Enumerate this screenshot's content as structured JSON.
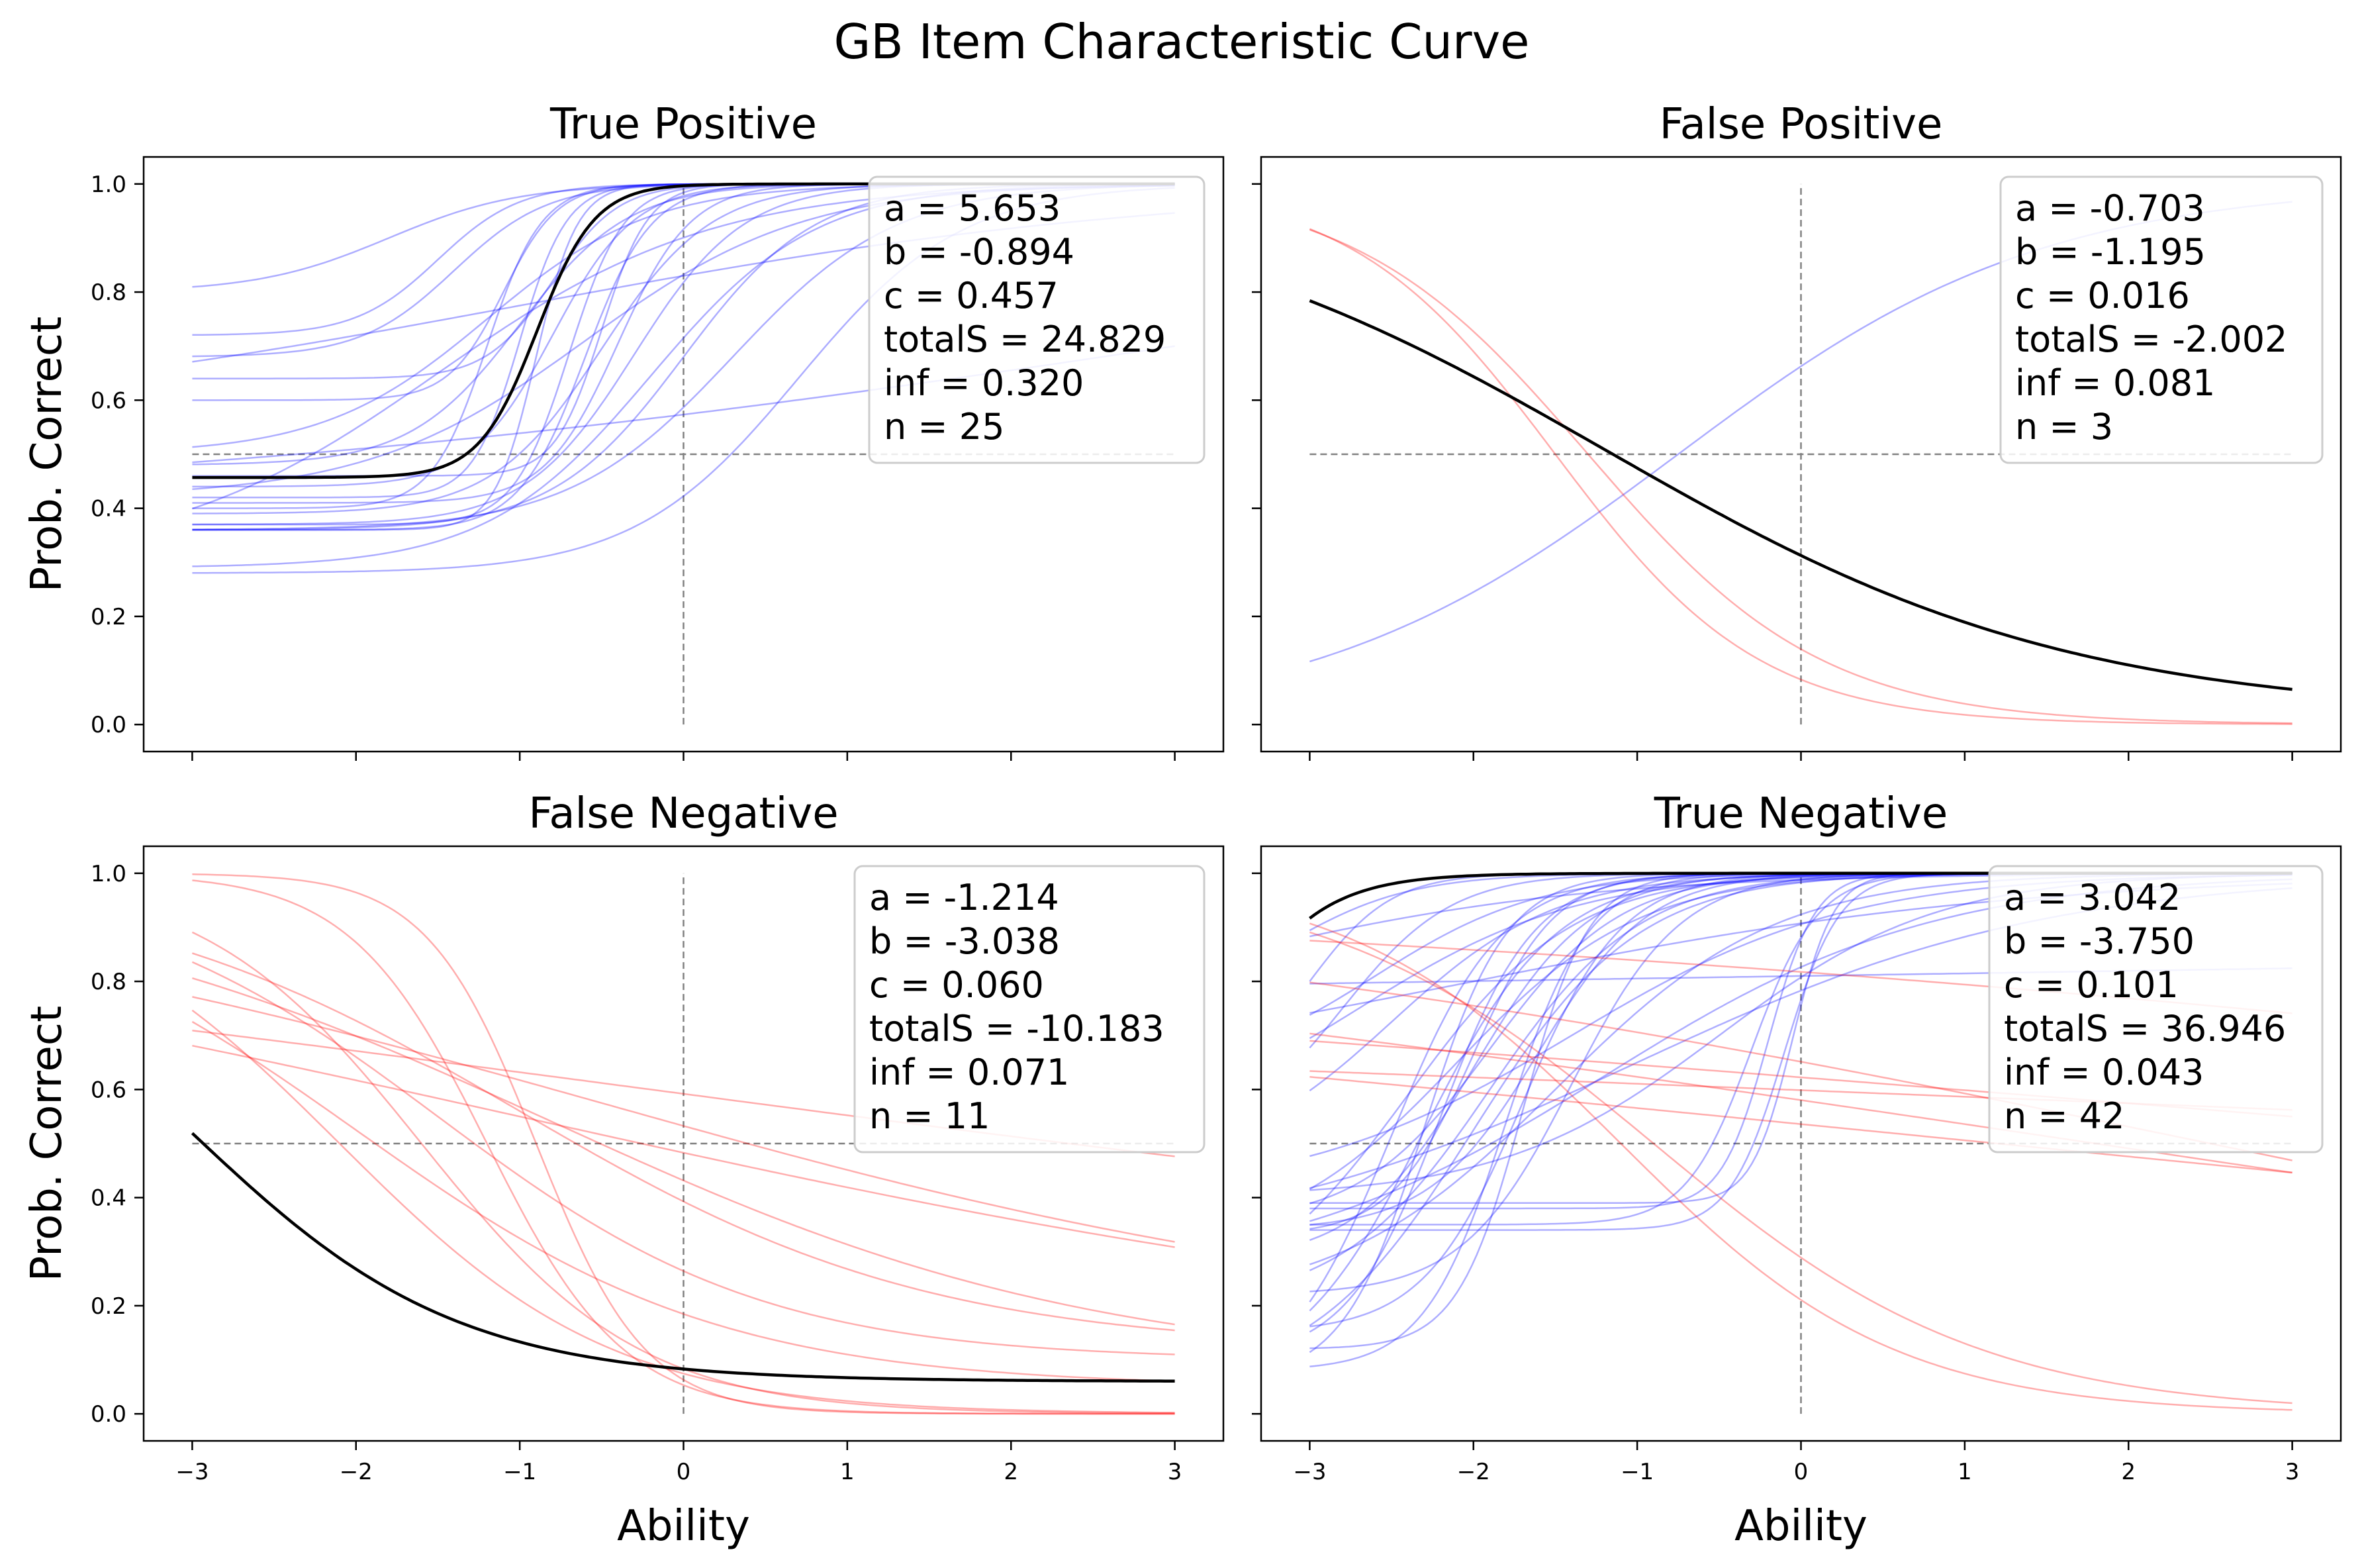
{
  "figure": {
    "title": "GB Item Characteristic Curve"
  },
  "colors": {
    "positive": "#0000ff",
    "negative": "#ff0000",
    "mean": "#000000",
    "guide": "#808080"
  },
  "chart_data": [
    {
      "type": "line",
      "title": "True Positive",
      "xlabel": "",
      "ylabel": "Prob. Correct",
      "xlim": [
        -3,
        3
      ],
      "ylim": [
        -0.05,
        1.05
      ],
      "xticks": [
        "−3",
        "−2",
        "−1",
        "0",
        "1",
        "2",
        "3"
      ],
      "yticks": [
        "0.0",
        "0.2",
        "0.4",
        "0.6",
        "0.8",
        "1.0"
      ],
      "show_xtick_labels": false,
      "show_ytick_labels": true,
      "mean_curve": {
        "a": 5.653,
        "b": -0.894,
        "c": 0.457
      },
      "item_curves": [
        {
          "a": 8.0,
          "b": -0.9,
          "c": 0.36
        },
        {
          "a": 6.0,
          "b": -0.7,
          "c": 0.37
        },
        {
          "a": 5.0,
          "b": -0.6,
          "c": 0.36
        },
        {
          "a": 7.0,
          "b": -1.0,
          "c": 0.42
        },
        {
          "a": 4.0,
          "b": -0.8,
          "c": 0.44
        },
        {
          "a": 6.0,
          "b": -1.1,
          "c": 0.6
        },
        {
          "a": 3.0,
          "b": -1.0,
          "c": 0.48
        },
        {
          "a": 4.0,
          "b": -1.5,
          "c": 0.72
        },
        {
          "a": 3.5,
          "b": -1.4,
          "c": 0.68
        },
        {
          "a": 5.0,
          "b": -0.8,
          "c": 0.64
        },
        {
          "a": 2.5,
          "b": -1.8,
          "c": 0.8
        },
        {
          "a": 2.0,
          "b": -1.2,
          "c": 0.5
        },
        {
          "a": 3.0,
          "b": -0.5,
          "c": 0.39
        },
        {
          "a": 3.0,
          "b": -0.3,
          "c": 0.37
        },
        {
          "a": 2.5,
          "b": 0.0,
          "c": 0.36
        },
        {
          "a": 2.0,
          "b": 0.3,
          "c": 0.36
        },
        {
          "a": 2.0,
          "b": 0.7,
          "c": 0.28
        },
        {
          "a": 2.0,
          "b": -0.2,
          "c": 0.29
        },
        {
          "a": 1.5,
          "b": -0.6,
          "c": 0.42
        },
        {
          "a": 0.5,
          "b": -1.0,
          "c": 0.55
        },
        {
          "a": 0.3,
          "b": 3.0,
          "c": 0.4
        },
        {
          "a": 6.0,
          "b": -1.2,
          "c": 0.4
        },
        {
          "a": 4.5,
          "b": -0.4,
          "c": 0.41
        },
        {
          "a": 1.2,
          "b": -1.5,
          "c": 0.3
        },
        {
          "a": 7.0,
          "b": -0.5,
          "c": 0.46
        }
      ],
      "stats": [
        "a = 5.653",
        "b = -0.894",
        "c = 0.457",
        "totalS = 24.829",
        "inf = 0.320",
        "n = 25"
      ]
    },
    {
      "type": "line",
      "title": "False Positive",
      "xlabel": "",
      "ylabel": "",
      "xlim": [
        -3,
        3
      ],
      "ylim": [
        -0.05,
        1.05
      ],
      "xticks": [
        "−3",
        "−2",
        "−1",
        "0",
        "1",
        "2",
        "3"
      ],
      "yticks": [
        "0.0",
        "0.2",
        "0.4",
        "0.6",
        "0.8",
        "1.0"
      ],
      "show_xtick_labels": false,
      "show_ytick_labels": false,
      "mean_curve": {
        "a": -0.703,
        "b": -1.195,
        "c": 0.016
      },
      "item_curves": [
        {
          "a": 0.9,
          "b": -0.75,
          "c": 0.0
        },
        {
          "a": -1.6,
          "b": -1.5,
          "c": 0.0
        },
        {
          "a": -1.4,
          "b": -1.3,
          "c": 0.0
        }
      ],
      "stats": [
        "a = -0.703",
        "b = -1.195",
        "c = 0.016",
        "totalS = -2.002",
        "inf = 0.081",
        "n = 3"
      ]
    },
    {
      "type": "line",
      "title": "False Negative",
      "xlabel": "Ability",
      "ylabel": "Prob. Correct",
      "xlim": [
        -3,
        3
      ],
      "ylim": [
        -0.05,
        1.05
      ],
      "xticks": [
        "−3",
        "−2",
        "−1",
        "0",
        "1",
        "2",
        "3"
      ],
      "yticks": [
        "0.0",
        "0.2",
        "0.4",
        "0.6",
        "0.8",
        "1.0"
      ],
      "show_xtick_labels": true,
      "show_ytick_labels": true,
      "mean_curve": {
        "a": -1.214,
        "b": -3.038,
        "c": 0.06
      },
      "item_curves": [
        {
          "a": -3.0,
          "b": -0.9,
          "c": 0.0
        },
        {
          "a": -2.4,
          "b": -1.2,
          "c": 0.0
        },
        {
          "a": -1.5,
          "b": -1.6,
          "c": 0.0
        },
        {
          "a": -1.2,
          "b": -2.1,
          "c": 0.0
        },
        {
          "a": -1.0,
          "b": -1.5,
          "c": 0.1
        },
        {
          "a": -0.9,
          "b": -2.0,
          "c": 0.05
        },
        {
          "a": -0.8,
          "b": -1.0,
          "c": 0.12
        },
        {
          "a": -0.6,
          "b": -0.8,
          "c": 0.08
        },
        {
          "a": -0.4,
          "b": -0.5,
          "c": 0.15
        },
        {
          "a": -0.3,
          "b": -1.0,
          "c": 0.1
        },
        {
          "a": -0.2,
          "b": -0.2,
          "c": 0.2
        }
      ],
      "stats": [
        "a = -1.214",
        "b = -3.038",
        "c = 0.060",
        "totalS = -10.183",
        "inf = 0.071",
        "n = 11"
      ]
    },
    {
      "type": "line",
      "title": "True Negative",
      "xlabel": "Ability",
      "ylabel": "",
      "xlim": [
        -3,
        3
      ],
      "ylim": [
        -0.05,
        1.05
      ],
      "xticks": [
        "−3",
        "−2",
        "−1",
        "0",
        "1",
        "2",
        "3"
      ],
      "yticks": [
        "0.0",
        "0.2",
        "0.4",
        "0.6",
        "0.8",
        "1.0"
      ],
      "show_xtick_labels": true,
      "show_ytick_labels": false,
      "mean_curve": {
        "a": 3.042,
        "b": -3.75,
        "c": 0.101
      },
      "item_curves": [
        {
          "a": 3.0,
          "b": -2.5,
          "c": 0.03
        },
        {
          "a": 2.5,
          "b": -2.3,
          "c": 0.05
        },
        {
          "a": 2.0,
          "b": -2.0,
          "c": 0.05
        },
        {
          "a": 3.5,
          "b": -2.2,
          "c": 0.1
        },
        {
          "a": 4.0,
          "b": -1.8,
          "c": 0.08
        },
        {
          "a": 2.2,
          "b": -1.9,
          "c": 0.2
        },
        {
          "a": 1.8,
          "b": -2.1,
          "c": 0.3
        },
        {
          "a": 5.0,
          "b": -1.7,
          "c": 0.12
        },
        {
          "a": 3.0,
          "b": -1.6,
          "c": 0.34
        },
        {
          "a": 2.0,
          "b": -2.5,
          "c": 0.45
        },
        {
          "a": 1.5,
          "b": -1.5,
          "c": 0.2
        },
        {
          "a": 4.0,
          "b": -2.0,
          "c": 0.33
        },
        {
          "a": 6.0,
          "b": -0.1,
          "c": 0.34
        },
        {
          "a": 7.0,
          "b": -0.2,
          "c": 0.38
        },
        {
          "a": 8.0,
          "b": -0.05,
          "c": 0.39
        },
        {
          "a": 5.0,
          "b": -0.3,
          "c": 0.35
        },
        {
          "a": 3.0,
          "b": -2.8,
          "c": 0.5
        },
        {
          "a": 4.0,
          "b": -3.0,
          "c": 0.6
        },
        {
          "a": 2.5,
          "b": -3.2,
          "c": 0.72
        },
        {
          "a": 2.0,
          "b": -2.6,
          "c": 0.62
        },
        {
          "a": 1.0,
          "b": -1.2,
          "c": 0.25
        },
        {
          "a": 0.8,
          "b": -1.0,
          "c": 0.3
        },
        {
          "a": 1.2,
          "b": -1.4,
          "c": 0.4
        },
        {
          "a": 2.0,
          "b": -2.4,
          "c": 0.18
        },
        {
          "a": 3.0,
          "b": -1.4,
          "c": 0.22
        },
        {
          "a": 2.5,
          "b": -1.9,
          "c": 0.35
        },
        {
          "a": 1.5,
          "b": -2.7,
          "c": 0.5
        },
        {
          "a": 0.6,
          "b": -2.0,
          "c": 0.6
        },
        {
          "a": 0.05,
          "b": 0.0,
          "c": 0.62
        },
        {
          "a": 4.0,
          "b": -2.3,
          "c": 0.06
        },
        {
          "a": 3.3,
          "b": -1.7,
          "c": 0.15
        },
        {
          "a": 2.8,
          "b": -2.0,
          "c": 0.28
        },
        {
          "a": 1.5,
          "b": -0.5,
          "c": 0.4
        },
        {
          "a": 0.9,
          "b": -3.5,
          "c": 0.7
        }
      ],
      "negative_item_curves": [
        {
          "a": -0.15,
          "b": 10.0,
          "c": 0.0
        },
        {
          "a": -0.25,
          "b": 2.5,
          "c": 0.0
        },
        {
          "a": -0.12,
          "b": 1.2,
          "c": 0.0
        },
        {
          "a": -1.0,
          "b": -0.9,
          "c": 0.0
        },
        {
          "a": -1.2,
          "b": -1.1,
          "c": 0.0
        },
        {
          "a": -0.05,
          "b": 8.0,
          "c": 0.0
        },
        {
          "a": -0.18,
          "b": 1.8,
          "c": 0.0
        },
        {
          "a": -0.1,
          "b": 5.0,
          "c": 0.0
        }
      ],
      "stats": [
        "a = 3.042",
        "b = -3.750",
        "c = 0.101",
        "totalS = 36.946",
        "inf = 0.043",
        "n = 42"
      ]
    }
  ]
}
